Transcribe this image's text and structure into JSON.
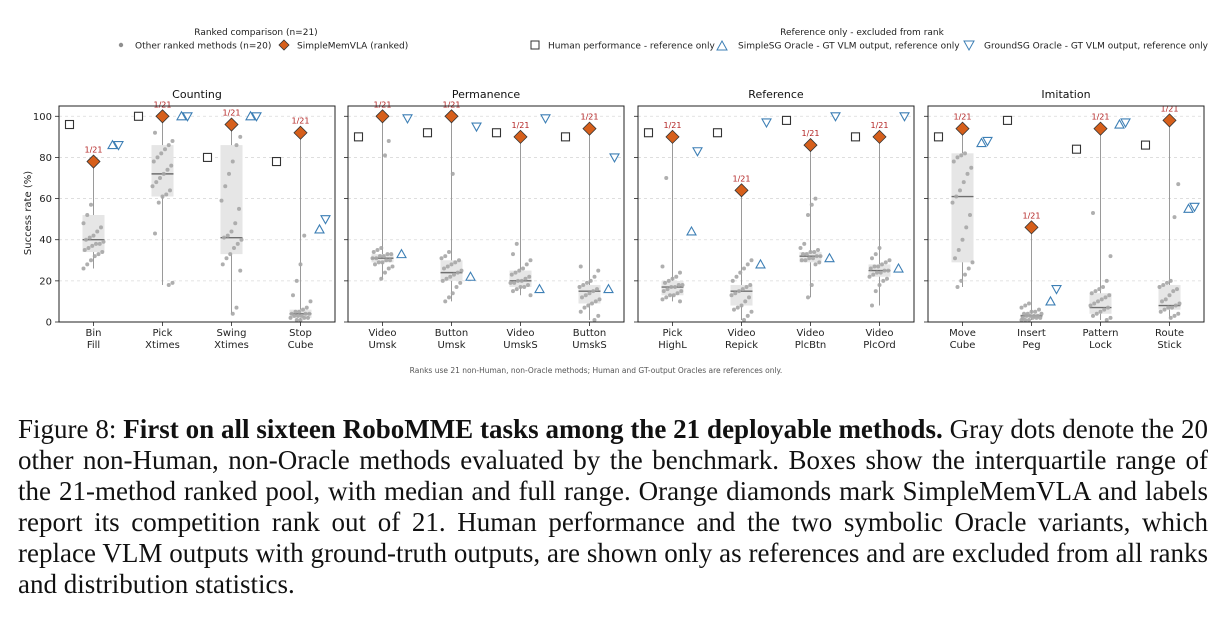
{
  "legend": {
    "ranked_title": "Ranked comparison (n=21)",
    "others_label": "Other ranked methods (n=20)",
    "ours_label": "SimpleMemVLA (ranked)",
    "ref_title": "Reference only - excluded from rank",
    "human_label": "Human performance - reference only",
    "simplesg_label": "SimpleSG Oracle - GT VLM output, reference only",
    "groundsg_label": "GroundSG Oracle - GT VLM output, reference only"
  },
  "footnote": "Ranks use 21 non-Human, non-Oracle methods; Human and GT-output Oracles are references only.",
  "caption": {
    "prefix": "Figure 8: ",
    "bold": "First on all sixteen RoboMME tasks among the 21 deployable methods.",
    "rest": " Gray dots denote the 20 other non-Human, non-Oracle methods evaluated by the benchmark. Boxes show the interquartile range of the 21-method ranked pool, with median and full range. Orange diamonds mark SimpleMemVLA and labels report its competition rank out of 21. Human performance and the two symbolic Oracle variants, which replace VLM outputs with ground-truth outputs, are shown only as references and are excluded from all ranks and distribution statistics."
  },
  "colors": {
    "dots": "#a6a6a6",
    "box_fill": "#e6e6e6",
    "ours": "#d65f1b",
    "rank_label": "#b22222",
    "oracle": "#3d7fb5",
    "human": "#333333"
  },
  "chart_data": {
    "type": "box-strip",
    "ylabel": "Success rate (%)",
    "ylim": [
      0,
      105
    ],
    "yticks": [
      0,
      20,
      40,
      60,
      80,
      100
    ],
    "grid": "horizontal dashed",
    "panels": [
      {
        "title": "Counting",
        "tasks": [
          {
            "label": [
              "Bin",
              "Fill"
            ],
            "min": 26,
            "q1": 34,
            "median": 40,
            "q3": 52,
            "max": 78,
            "ours": 78,
            "rank": "1/21",
            "human": 96,
            "simplesg": 86,
            "groundsg": 86,
            "others": [
              26,
              28,
              30,
              32,
              33,
              34,
              35,
              36,
              37,
              38,
              38,
              39,
              40,
              41,
              42,
              44,
              46,
              48,
              52,
              57
            ]
          },
          {
            "label": [
              "Pick",
              "Xtimes"
            ],
            "min": 18,
            "q1": 61,
            "median": 72,
            "q3": 86,
            "max": 100,
            "ours": 100,
            "rank": "1/21",
            "human": 100,
            "simplesg": 100,
            "groundsg": 100,
            "others": [
              18,
              19,
              43,
              58,
              61,
              62,
              64,
              66,
              68,
              70,
              72,
              74,
              76,
              78,
              80,
              82,
              84,
              86,
              88,
              92
            ]
          },
          {
            "label": [
              "Swing",
              "Xtimes"
            ],
            "min": 4,
            "q1": 33,
            "median": 41,
            "q3": 86,
            "max": 96,
            "ours": 96,
            "rank": "1/21",
            "human": 80,
            "simplesg": 100,
            "groundsg": 100,
            "others": [
              4,
              7,
              25,
              28,
              31,
              33,
              36,
              38,
              40,
              41,
              42,
              44,
              48,
              55,
              59,
              66,
              72,
              78,
              86,
              90
            ]
          },
          {
            "label": [
              "Stop",
              "Cube"
            ],
            "min": 1,
            "q1": 2,
            "median": 4,
            "q3": 6,
            "max": 92,
            "ours": 92,
            "rank": "1/21",
            "human": 78,
            "simplesg": 45,
            "groundsg": 50,
            "others": [
              1,
              1,
              2,
              2,
              2,
              3,
              3,
              3,
              4,
              4,
              4,
              5,
              5,
              6,
              7,
              10,
              13,
              20,
              28,
              42
            ]
          }
        ]
      },
      {
        "title": "Permanence",
        "tasks": [
          {
            "label": [
              "Video",
              "Umsk"
            ],
            "min": 21,
            "q1": 29,
            "median": 31,
            "q3": 33,
            "max": 100,
            "ours": 100,
            "rank": "1/21",
            "human": 90,
            "simplesg": 33,
            "groundsg": 99,
            "others": [
              21,
              24,
              26,
              27,
              28,
              29,
              29,
              30,
              30,
              31,
              31,
              32,
              32,
              33,
              33,
              34,
              35,
              36,
              81,
              88
            ]
          },
          {
            "label": [
              "Button",
              "Umsk"
            ],
            "min": 10,
            "q1": 20,
            "median": 24,
            "q3": 30,
            "max": 100,
            "ours": 100,
            "rank": "1/21",
            "human": 92,
            "simplesg": 22,
            "groundsg": 95,
            "others": [
              10,
              12,
              14,
              17,
              19,
              20,
              21,
              22,
              23,
              24,
              25,
              26,
              27,
              28,
              29,
              30,
              31,
              32,
              34,
              72
            ]
          },
          {
            "label": [
              "Video",
              "UmskS"
            ],
            "min": 13,
            "q1": 17,
            "median": 20,
            "q3": 25,
            "max": 90,
            "ours": 90,
            "rank": "1/21",
            "human": 92,
            "simplesg": 16,
            "groundsg": 99,
            "others": [
              13,
              15,
              16,
              17,
              17,
              18,
              19,
              19,
              20,
              20,
              21,
              22,
              23,
              24,
              25,
              26,
              28,
              30,
              33,
              38
            ]
          },
          {
            "label": [
              "Button",
              "UmskS"
            ],
            "min": 1,
            "q1": 9,
            "median": 15,
            "q3": 18,
            "max": 94,
            "ours": 94,
            "rank": "1/21",
            "human": 90,
            "simplesg": 16,
            "groundsg": 80,
            "others": [
              1,
              3,
              5,
              7,
              8,
              9,
              10,
              11,
              12,
              13,
              14,
              15,
              16,
              17,
              18,
              19,
              20,
              22,
              25,
              27
            ]
          }
        ]
      },
      {
        "title": "Reference",
        "tasks": [
          {
            "label": [
              "Pick",
              "HighL"
            ],
            "min": 10,
            "q1": 13,
            "median": 17,
            "q3": 20,
            "max": 90,
            "ours": 90,
            "rank": "1/21",
            "human": 92,
            "simplesg": 44,
            "groundsg": 83,
            "others": [
              10,
              11,
              12,
              13,
              13,
              14,
              15,
              15,
              16,
              17,
              17,
              18,
              18,
              19,
              20,
              21,
              22,
              24,
              27,
              70
            ]
          },
          {
            "label": [
              "Video",
              "Repick"
            ],
            "min": 1,
            "q1": 8,
            "median": 15,
            "q3": 18,
            "max": 64,
            "ours": 64,
            "rank": "1/21",
            "human": 92,
            "simplesg": 28,
            "groundsg": 97,
            "others": [
              1,
              3,
              5,
              6,
              7,
              8,
              10,
              12,
              13,
              14,
              15,
              16,
              17,
              18,
              20,
              22,
              24,
              26,
              28,
              30
            ]
          },
          {
            "label": [
              "Video",
              "PlcBtn"
            ],
            "min": 12,
            "q1": 29,
            "median": 32,
            "q3": 34,
            "max": 86,
            "ours": 86,
            "rank": "1/21",
            "human": 98,
            "simplesg": 31,
            "groundsg": 100,
            "others": [
              12,
              18,
              28,
              29,
              30,
              30,
              31,
              31,
              32,
              32,
              33,
              33,
              34,
              34,
              35,
              36,
              38,
              52,
              57,
              60
            ]
          },
          {
            "label": [
              "Video",
              "PlcOrd"
            ],
            "min": 8,
            "q1": 22,
            "median": 25,
            "q3": 28,
            "max": 90,
            "ours": 90,
            "rank": "1/21",
            "human": 90,
            "simplesg": 26,
            "groundsg": 100,
            "others": [
              8,
              15,
              18,
              20,
              21,
              22,
              23,
              24,
              24,
              25,
              25,
              26,
              27,
              27,
              28,
              29,
              30,
              31,
              33,
              36
            ]
          }
        ]
      },
      {
        "title": "Imitation",
        "tasks": [
          {
            "label": [
              "Move",
              "Cube"
            ],
            "min": 17,
            "q1": 29,
            "median": 61,
            "q3": 82,
            "max": 94,
            "ours": 94,
            "rank": "1/21",
            "human": 90,
            "simplesg": 87,
            "groundsg": 88,
            "others": [
              17,
              20,
              23,
              26,
              29,
              31,
              35,
              40,
              46,
              52,
              58,
              61,
              64,
              68,
              72,
              75,
              78,
              80,
              81,
              82
            ]
          },
          {
            "label": [
              "Insert",
              "Peg"
            ],
            "min": 1,
            "q1": 2,
            "median": 3,
            "q3": 4,
            "max": 46,
            "ours": 46,
            "rank": "1/21",
            "human": 98,
            "simplesg": 10,
            "groundsg": 16,
            "others": [
              1,
              1,
              1,
              2,
              2,
              2,
              2,
              3,
              3,
              3,
              3,
              4,
              4,
              4,
              5,
              5,
              6,
              7,
              8,
              9
            ]
          },
          {
            "label": [
              "Pattern",
              "Lock"
            ],
            "min": 1,
            "q1": 4,
            "median": 7,
            "q3": 14,
            "max": 94,
            "ours": 94,
            "rank": "1/21",
            "human": 84,
            "simplesg": 96,
            "groundsg": 97,
            "others": [
              1,
              2,
              3,
              4,
              5,
              6,
              7,
              8,
              9,
              10,
              11,
              12,
              13,
              14,
              15,
              16,
              17,
              20,
              32,
              53
            ]
          },
          {
            "label": [
              "Route",
              "Stick"
            ],
            "min": 2,
            "q1": 6,
            "median": 8,
            "q3": 18,
            "max": 98,
            "ours": 98,
            "rank": "1/21",
            "human": 86,
            "simplesg": 55,
            "groundsg": 56,
            "others": [
              2,
              3,
              4,
              5,
              6,
              7,
              7,
              8,
              9,
              10,
              11,
              13,
              15,
              16,
              17,
              18,
              19,
              20,
              51,
              67
            ]
          }
        ]
      }
    ]
  }
}
